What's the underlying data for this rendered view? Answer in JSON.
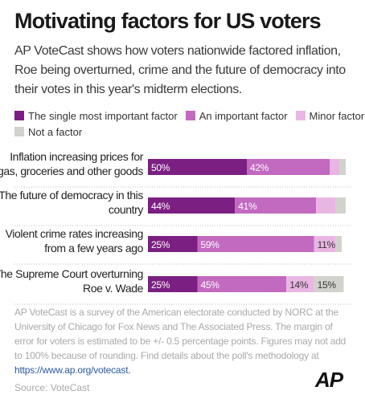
{
  "header": {
    "title": "Motivating factors for US voters",
    "subtitle": "AP VoteCast shows how voters nationwide factored inflation, Roe being overturned, crime and the future of democracy into their votes in this year's midterm elections."
  },
  "footer": {
    "note": "AP VoteCast is a survey of the American electorate conducted by NORC at the University of Chicago for Fox News and The Associated Press. The margin of error for voters is estimated to be +/- 0.5 percentage points. Figures may not add to 100% because of rounding. Find details about the poll's methodology at",
    "link": "https://www.ap.org/votecast.",
    "source": "Source: VoteCast",
    "logo": "AP"
  },
  "chart_data": {
    "type": "bar",
    "orientation": "horizontal",
    "stacked": true,
    "categories": [
      [
        "Inflation increasing prices for",
        "gas, groceries and other goods"
      ],
      [
        "The future of democracy in this",
        "country"
      ],
      [
        "Violent crime rates increasing",
        "from a few years ago"
      ],
      [
        "The Supreme Court overturning",
        "Roe v. Wade"
      ]
    ],
    "series": [
      {
        "name": "The single most important factor",
        "color": "#7b1f82",
        "values": [
          50,
          44,
          25,
          25
        ],
        "labels": [
          "50%",
          "44%",
          "25%",
          "25%"
        ]
      },
      {
        "name": "An important factor",
        "color": "#c269c0",
        "values": [
          42,
          41,
          59,
          45
        ],
        "labels": [
          "42%",
          "41%",
          "59%",
          "45%"
        ]
      },
      {
        "name": "Minor factor",
        "color": "#e9b6e3",
        "values": [
          5,
          10,
          11,
          14
        ],
        "labels": [
          "",
          "",
          "11%",
          "14%"
        ]
      },
      {
        "name": "Not a factor",
        "color": "#d2d2cc",
        "values": [
          3,
          5,
          3,
          15
        ],
        "labels": [
          "",
          "",
          "",
          "15%"
        ]
      }
    ],
    "xlim": [
      0,
      100
    ],
    "legend_position": "top"
  }
}
